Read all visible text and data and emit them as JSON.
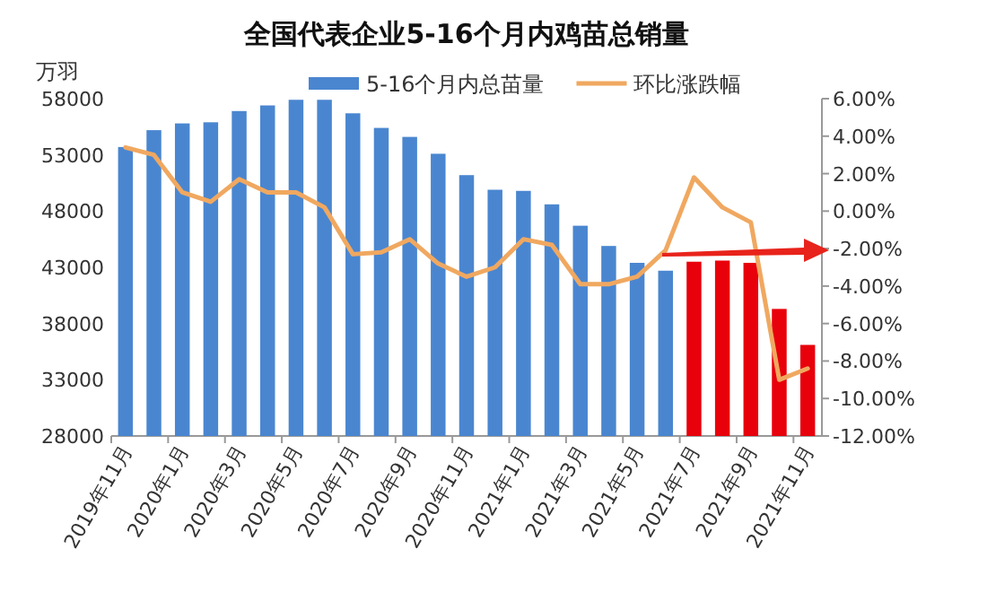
{
  "chart_data": {
    "type": "bar",
    "title": "全国代表企业5-16个月内鸡苗总销量",
    "ylabel": "万羽",
    "categories": [
      "2019年11月",
      null,
      "2020年1月",
      null,
      "2020年3月",
      null,
      "2020年5月",
      null,
      "2020年7月",
      null,
      "2020年9月",
      null,
      "2020年11月",
      null,
      "2021年1月",
      null,
      "2021年3月",
      null,
      "2021年5月",
      null,
      "2021年7月",
      null,
      "2021年9月",
      null,
      "2021年11月"
    ],
    "series": [
      {
        "name": "5-16个月内总苗量",
        "color": "#4a86d0",
        "colors": [
          "#4a86d0",
          "#4a86d0",
          "#4a86d0",
          "#4a86d0",
          "#4a86d0",
          "#4a86d0",
          "#4a86d0",
          "#4a86d0",
          "#4a86d0",
          "#4a86d0",
          "#4a86d0",
          "#4a86d0",
          "#4a86d0",
          "#4a86d0",
          "#4a86d0",
          "#4a86d0",
          "#4a86d0",
          "#4a86d0",
          "#4a86d0",
          "#4a86d0",
          "#e8000b",
          "#e8000b",
          "#e8000b",
          "#e8000b",
          "#e8000b"
        ],
        "values": [
          53700,
          55200,
          55800,
          55900,
          56900,
          57400,
          57900,
          57900,
          56700,
          55400,
          54600,
          53100,
          51200,
          49900,
          49800,
          48600,
          46700,
          44900,
          43400,
          42700,
          43500,
          43600,
          43400,
          39300,
          36100
        ]
      },
      {
        "name": "环比涨跌幅",
        "type": "line",
        "axis": "y2",
        "color": "#f0a860",
        "values": [
          3.4,
          3.0,
          1.0,
          0.5,
          1.7,
          1.0,
          1.0,
          0.2,
          -2.3,
          -2.2,
          -1.5,
          -2.8,
          -3.5,
          -3.0,
          -1.5,
          -1.8,
          -3.9,
          -3.9,
          -3.5,
          -2.1,
          1.8,
          0.2,
          -0.6,
          -9.0,
          -8.4
        ]
      }
    ],
    "ylim": [
      28000,
      58000
    ],
    "yticks": [
      28000,
      33000,
      38000,
      43000,
      48000,
      53000,
      58000
    ],
    "y2lim": [
      -12,
      6
    ],
    "y2ticks": [
      {
        "value": -12,
        "label": "-12.00%"
      },
      {
        "value": -10,
        "label": "-10.00%"
      },
      {
        "value": -8,
        "label": "-8.00%"
      },
      {
        "value": -6,
        "label": "-6.00%"
      },
      {
        "value": -4,
        "label": "-4.00%"
      },
      {
        "value": -2,
        "label": "-2.00%"
      },
      {
        "value": 0,
        "label": "0.00%"
      },
      {
        "value": 2,
        "label": "2.00%"
      },
      {
        "value": 4,
        "label": "4.00%"
      },
      {
        "value": 6,
        "label": "6.00%"
      }
    ],
    "legend": "top",
    "grid": false
  }
}
